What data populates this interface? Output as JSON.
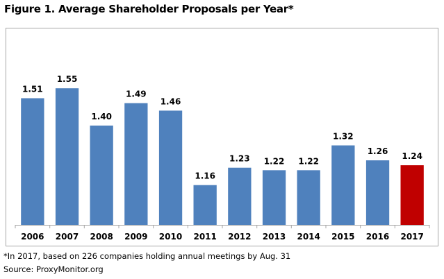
{
  "title": "Figure 1. Average Shareholder Proposals per Year*",
  "footnote": "*In 2017, based on 226 companies holding annual meetings by Aug. 31",
  "source": "Source: ProxyMonitor.org",
  "colors": {
    "bar": "#4f81bd",
    "highlight": "#c00000",
    "axis": "#a6a6a6",
    "frame": "#a6a6a6"
  },
  "chart_data": {
    "type": "bar",
    "title": "Figure 1. Average Shareholder Proposals per Year*",
    "xlabel": "",
    "ylabel": "",
    "categories": [
      "2006",
      "2007",
      "2008",
      "2009",
      "2010",
      "2011",
      "2012",
      "2013",
      "2014",
      "2015",
      "2016",
      "2017"
    ],
    "values": [
      1.51,
      1.55,
      1.4,
      1.49,
      1.46,
      1.16,
      1.23,
      1.22,
      1.22,
      1.32,
      1.26,
      1.24
    ],
    "data_labels": [
      "1.51",
      "1.55",
      "1.40",
      "1.49",
      "1.46",
      "1.16",
      "1.23",
      "1.22",
      "1.22",
      "1.32",
      "1.26",
      "1.24"
    ],
    "highlight_category": "2017",
    "ylim": [
      1.0,
      1.6
    ],
    "y_axis_visible": false,
    "grid": false,
    "legend": "none"
  }
}
